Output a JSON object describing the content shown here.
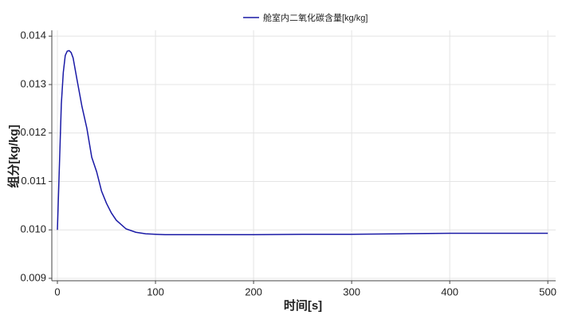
{
  "chart_data": {
    "type": "line",
    "x_label": "时间[s]",
    "y_label": "组分[kg/kg]",
    "x": [
      0,
      2,
      4,
      6,
      8,
      10,
      12,
      14,
      16,
      20,
      25,
      30,
      35,
      40,
      45,
      50,
      55,
      60,
      70,
      80,
      90,
      100,
      110,
      150,
      200,
      250,
      300,
      350,
      400,
      450,
      500
    ],
    "series": [
      {
        "name": "舱室内二氧化碳含量[kg/kg]",
        "color": "#1a1aa6",
        "values": [
          0.01,
          0.0113,
          0.0126,
          0.01325,
          0.0136,
          0.01369,
          0.0137,
          0.01366,
          0.01355,
          0.0131,
          0.01255,
          0.0121,
          0.0115,
          0.0112,
          0.0108,
          0.01055,
          0.01035,
          0.0102,
          0.01002,
          0.00995,
          0.00992,
          0.00991,
          0.0099,
          0.0099,
          0.0099,
          0.00991,
          0.00991,
          0.00992,
          0.00993,
          0.00993,
          0.00993
        ]
      }
    ],
    "xlim": [
      -5.7,
      508
    ],
    "ylim": [
      0.00895,
      0.01412
    ],
    "xticks": [
      0,
      100,
      200,
      300,
      400,
      500
    ],
    "yticks": [
      0.009,
      {
        "value": 0.01,
        "label": "0.010"
      },
      0.011,
      0.012,
      0.013,
      0.014
    ],
    "grid": true,
    "legend": "top"
  }
}
